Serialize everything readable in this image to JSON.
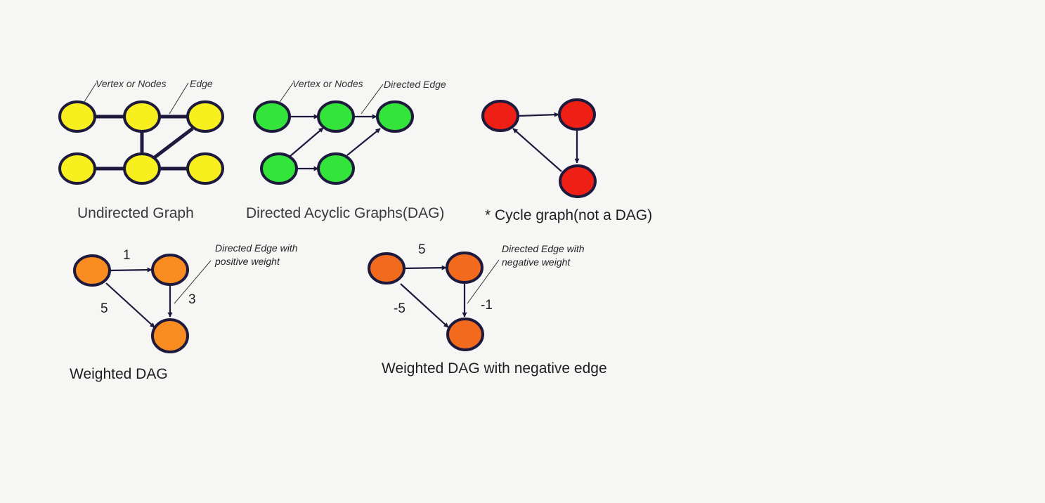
{
  "colors": {
    "background": "#f6f6f5",
    "outline": "#1e1a3d",
    "yellow": "#f8ef1e",
    "green": "#33e43a",
    "red": "#ee1f14",
    "orange_light": "#f98c20",
    "orange_dark": "#f26a1e",
    "caption": "#3a3a3a",
    "label": "#222222"
  },
  "undirected": {
    "caption": "Undirected Graph",
    "note_vertex": "Vertex or Nodes",
    "note_edge": "Edge"
  },
  "dag": {
    "caption": "Directed Acyclic Graphs(DAG)",
    "note_vertex": "Vertex or Nodes",
    "note_edge": "Directed Edge"
  },
  "cycle": {
    "caption": "* Cycle graph(not a DAG)"
  },
  "weighted": {
    "caption": "Weighted DAG",
    "note_line1": "Directed Edge with",
    "note_line2": "positive weight",
    "weights": [
      "1",
      "3",
      "5"
    ]
  },
  "weighted_negative": {
    "caption": "Weighted DAG with negative edge",
    "note_line1": "Directed Edge with",
    "note_line2": "negative weight",
    "weights": [
      "5",
      "-1",
      "-5"
    ]
  }
}
